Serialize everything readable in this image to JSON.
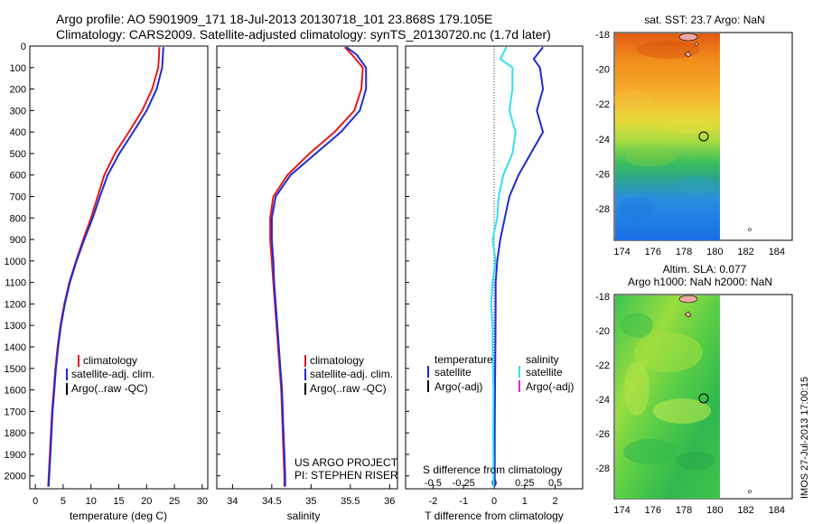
{
  "header": {
    "line1": "Argo profile: AO 5901909_171 18-Jul-2013 20130718_101 23.868S 179.105E",
    "line2": "Climatology: CARS2009. Satellite-adjusted climatology: synTS_20130720.nc (1.7d later)"
  },
  "footer": {
    "credit": "IMOS 27-Jul-2013 17:00:15"
  },
  "colors": {
    "climatology": "#e41a1c",
    "satellite": "#1f2bd6",
    "argo": "#000000",
    "salinity_satellite": "#33e0ee",
    "salinity_argo": "#d62bd6"
  },
  "chart_data": [
    {
      "type": "line",
      "panel": "temperature",
      "xlabel": "temperature (deg C)",
      "ylabel": "",
      "xlim": [
        -1,
        31
      ],
      "ylim": [
        2060,
        0
      ],
      "xticks": [
        "0",
        "5",
        "10",
        "15",
        "20",
        "25",
        "30"
      ],
      "yticks": [
        "0",
        "100",
        "200",
        "300",
        "400",
        "500",
        "600",
        "700",
        "800",
        "900",
        "1000",
        "1100",
        "1200",
        "1300",
        "1400",
        "1500",
        "1600",
        "1700",
        "1800",
        "1900",
        "2000"
      ],
      "legend": [
        "climatology",
        "satellite-adj. clim.",
        "Argo(..raw -QC)"
      ],
      "series": [
        {
          "name": "climatology",
          "color": "climatology",
          "points": [
            [
              22.3,
              5
            ],
            [
              22.2,
              60
            ],
            [
              22.1,
              100
            ],
            [
              21.0,
              200
            ],
            [
              19.2,
              300
            ],
            [
              16.8,
              400
            ],
            [
              14.3,
              500
            ],
            [
              12.4,
              600
            ],
            [
              11.2,
              700
            ],
            [
              10.0,
              800
            ],
            [
              8.6,
              900
            ],
            [
              7.3,
              1000
            ],
            [
              6.1,
              1100
            ],
            [
              5.2,
              1200
            ],
            [
              4.5,
              1300
            ],
            [
              4.0,
              1400
            ],
            [
              3.6,
              1500
            ],
            [
              3.3,
              1600
            ],
            [
              3.0,
              1700
            ],
            [
              2.8,
              1800
            ],
            [
              2.6,
              1900
            ],
            [
              2.4,
              2000
            ],
            [
              2.3,
              2050
            ]
          ]
        },
        {
          "name": "satellite-adj. clim.",
          "color": "satellite",
          "points": [
            [
              23.0,
              5
            ],
            [
              22.9,
              60
            ],
            [
              22.8,
              100
            ],
            [
              21.8,
              200
            ],
            [
              20.0,
              300
            ],
            [
              17.6,
              400
            ],
            [
              15.1,
              500
            ],
            [
              13.0,
              600
            ],
            [
              11.6,
              700
            ],
            [
              10.3,
              800
            ],
            [
              8.8,
              900
            ],
            [
              7.4,
              1000
            ],
            [
              6.2,
              1100
            ],
            [
              5.3,
              1200
            ],
            [
              4.6,
              1300
            ],
            [
              4.1,
              1400
            ],
            [
              3.7,
              1500
            ],
            [
              3.4,
              1600
            ],
            [
              3.1,
              1700
            ],
            [
              2.9,
              1800
            ],
            [
              2.7,
              1900
            ],
            [
              2.5,
              2000
            ],
            [
              2.4,
              2050
            ]
          ]
        }
      ]
    },
    {
      "type": "line",
      "panel": "salinity",
      "xlabel": "salinity",
      "xlim": [
        33.8,
        36.1
      ],
      "ylim": [
        2060,
        0
      ],
      "xticks": [
        "34",
        "34.5",
        "35",
        "35.5",
        "36"
      ],
      "legend": [
        "climatology",
        "satellite-adj. clim.",
        "Argo(..raw -QC)"
      ],
      "annotation": [
        "US ARGO PROJECT",
        "PI: STEPHEN RISER"
      ],
      "series": [
        {
          "name": "climatology",
          "color": "climatology",
          "points": [
            [
              35.43,
              5
            ],
            [
              35.52,
              40
            ],
            [
              35.66,
              100
            ],
            [
              35.64,
              200
            ],
            [
              35.55,
              300
            ],
            [
              35.3,
              400
            ],
            [
              34.98,
              500
            ],
            [
              34.7,
              600
            ],
            [
              34.52,
              700
            ],
            [
              34.48,
              800
            ],
            [
              34.48,
              900
            ],
            [
              34.5,
              1000
            ],
            [
              34.52,
              1100
            ],
            [
              34.54,
              1200
            ],
            [
              34.56,
              1300
            ],
            [
              34.58,
              1400
            ],
            [
              34.6,
              1500
            ],
            [
              34.62,
              1600
            ],
            [
              34.63,
              1700
            ],
            [
              34.64,
              1800
            ],
            [
              34.65,
              1900
            ],
            [
              34.66,
              2000
            ],
            [
              34.66,
              2050
            ]
          ]
        },
        {
          "name": "satellite-adj. clim.",
          "color": "satellite",
          "points": [
            [
              35.45,
              5
            ],
            [
              35.58,
              40
            ],
            [
              35.7,
              100
            ],
            [
              35.7,
              200
            ],
            [
              35.62,
              300
            ],
            [
              35.38,
              400
            ],
            [
              35.06,
              500
            ],
            [
              34.74,
              600
            ],
            [
              34.55,
              700
            ],
            [
              34.5,
              800
            ],
            [
              34.5,
              900
            ],
            [
              34.52,
              1000
            ],
            [
              34.53,
              1100
            ],
            [
              34.55,
              1200
            ],
            [
              34.57,
              1300
            ],
            [
              34.59,
              1400
            ],
            [
              34.61,
              1500
            ],
            [
              34.63,
              1600
            ],
            [
              34.64,
              1700
            ],
            [
              34.65,
              1800
            ],
            [
              34.66,
              1900
            ],
            [
              34.67,
              2000
            ],
            [
              34.67,
              2050
            ]
          ]
        }
      ]
    },
    {
      "type": "line",
      "panel": "difference",
      "xlabel": "T difference from climatology",
      "xlabel_top": "S difference from climatology",
      "xlim": [
        -2.9,
        2.9
      ],
      "ylim": [
        2060,
        0
      ],
      "xticks": [
        "-2",
        "-1",
        "0",
        "1",
        "2"
      ],
      "xticks_s": [
        "-0.5",
        "-0.25",
        "0",
        "0.25",
        "0.5"
      ],
      "legend_temperature_title": "temperature",
      "legend_salinity_title": "salinity",
      "legend_temperature": [
        "satellite",
        "Argo(-adj)"
      ],
      "legend_salinity": [
        "satellite",
        "Argo(-adj)"
      ],
      "series": [
        {
          "name": "satellite",
          "color": "satellite",
          "points": [
            [
              1.6,
              5
            ],
            [
              1.3,
              60
            ],
            [
              1.5,
              100
            ],
            [
              1.6,
              200
            ],
            [
              1.4,
              300
            ],
            [
              1.6,
              400
            ],
            [
              1.2,
              500
            ],
            [
              0.8,
              600
            ],
            [
              0.5,
              700
            ],
            [
              0.35,
              800
            ],
            [
              0.2,
              900
            ],
            [
              0.1,
              1000
            ],
            [
              0.05,
              1100
            ],
            [
              0.05,
              1200
            ],
            [
              0.04,
              1400
            ],
            [
              0.03,
              1600
            ],
            [
              0.02,
              1800
            ],
            [
              0.02,
              2000
            ],
            [
              0.02,
              2050
            ]
          ]
        },
        {
          "name": "satellite",
          "color": "salinity_satellite",
          "points": [
            [
              0.4,
              5
            ],
            [
              0.2,
              60
            ],
            [
              0.6,
              100
            ],
            [
              0.6,
              200
            ],
            [
              0.5,
              300
            ],
            [
              0.7,
              400
            ],
            [
              0.6,
              500
            ],
            [
              0.3,
              600
            ],
            [
              0.15,
              700
            ],
            [
              0.1,
              800
            ],
            [
              -0.05,
              900
            ],
            [
              0.05,
              1000
            ],
            [
              -0.05,
              1100
            ],
            [
              -0.1,
              1200
            ],
            [
              -0.05,
              1300
            ],
            [
              -0.05,
              1400
            ],
            [
              -0.02,
              1600
            ],
            [
              -0.03,
              1800
            ],
            [
              -0.02,
              2000
            ],
            [
              -0.02,
              2050
            ]
          ]
        }
      ]
    },
    {
      "type": "heatmap",
      "panel": "sst_map",
      "title": "sat. SST: 23.7 Argo: NaN",
      "xticks": [
        "174",
        "176",
        "178",
        "180",
        "182",
        "184"
      ],
      "yticks": [
        "-18",
        "-20",
        "-22",
        "-24",
        "-26",
        "-28"
      ],
      "xlim": [
        173.5,
        185
      ],
      "ylim": [
        -29.8,
        -17.9
      ],
      "argo_position": [
        179.1,
        -23.87
      ]
    },
    {
      "type": "heatmap",
      "panel": "sla_map",
      "title": "Altim. SLA: 0.077",
      "subtitle": "Argo h1000: NaN h2000: NaN",
      "xticks": [
        "174",
        "176",
        "178",
        "180",
        "182",
        "184"
      ],
      "yticks": [
        "-18",
        "-20",
        "-22",
        "-24",
        "-26",
        "-28"
      ],
      "xlim": [
        173.5,
        185
      ],
      "ylim": [
        -29.8,
        -17.9
      ],
      "argo_position": [
        179.1,
        -23.87
      ]
    }
  ]
}
